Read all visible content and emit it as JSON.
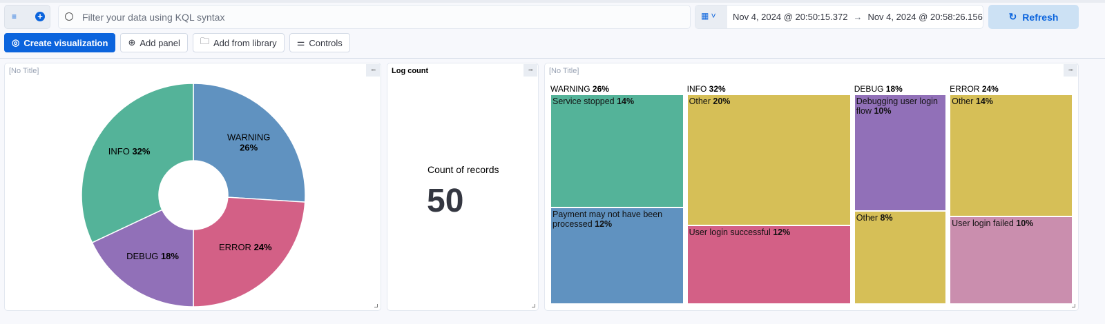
{
  "query": {
    "placeholder": "Filter your data using KQL syntax"
  },
  "time": {
    "start": "Nov 4, 2024 @ 20:50:15.372",
    "end": "Nov 4, 2024 @ 20:58:26.156",
    "refresh": "Refresh"
  },
  "toolbar": {
    "create": "Create visualization",
    "add_panel": "Add panel",
    "library": "Add from library",
    "controls": "Controls"
  },
  "panels": {
    "pie": {
      "title": "[No Title]"
    },
    "metric": {
      "title": "Log count",
      "label": "Count of records",
      "value": "50"
    },
    "treemap": {
      "title": "[No Title]"
    }
  },
  "colors": {
    "WARNING": "#6092c0",
    "ERROR": "#d36086",
    "DEBUG": "#9170b8",
    "INFO": "#54b399",
    "accent": "#0b64dd"
  },
  "chart_data": [
    {
      "type": "pie",
      "donut": true,
      "slices": [
        {
          "label": "WARNING",
          "value": 26,
          "color": "#6092c0"
        },
        {
          "label": "ERROR",
          "value": 24,
          "color": "#d36086"
        },
        {
          "label": "DEBUG",
          "value": 18,
          "color": "#9170b8"
        },
        {
          "label": "INFO",
          "value": 32,
          "color": "#54b399"
        }
      ]
    },
    {
      "type": "treemap",
      "groups": [
        {
          "label": "WARNING",
          "value": 26,
          "children": [
            {
              "label": "Service stopped",
              "value": 14,
              "color": "#54b399"
            },
            {
              "label": "Payment may not have been processed",
              "value": 12,
              "color": "#6092c0"
            }
          ]
        },
        {
          "label": "INFO",
          "value": 32,
          "children": [
            {
              "label": "Other",
              "value": 20,
              "color": "#d6bf57"
            },
            {
              "label": "User login successful",
              "value": 12,
              "color": "#d36086"
            }
          ]
        },
        {
          "label": "DEBUG",
          "value": 18,
          "children": [
            {
              "label": "Debugging user login flow",
              "value": 10,
              "color": "#9170b8"
            },
            {
              "label": "Other",
              "value": 8,
              "color": "#d6bf57"
            }
          ]
        },
        {
          "label": "ERROR",
          "value": 24,
          "children": [
            {
              "label": "Other",
              "value": 14,
              "color": "#d6bf57"
            },
            {
              "label": "User login failed",
              "value": 10,
              "color": "#ca8eae"
            }
          ]
        }
      ]
    }
  ]
}
